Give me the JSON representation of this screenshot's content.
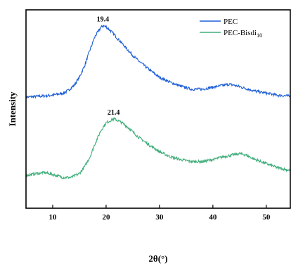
{
  "chart_data": {
    "type": "line",
    "xlabel": "2θ(°)",
    "ylabel": "Intensity",
    "xlim": [
      5,
      54.5
    ],
    "x_ticks": [
      10,
      20,
      30,
      40,
      50
    ],
    "y_ticks_shown": false,
    "grid": false,
    "legend_position": "top-right",
    "series": [
      {
        "name": "PEC",
        "color": "#1f5fd6",
        "x": [
          5,
          8,
          10,
          12,
          13,
          14,
          15,
          16,
          17,
          18,
          19,
          19.4,
          20,
          21,
          22,
          23,
          24,
          25,
          26,
          28,
          30,
          32,
          34,
          36,
          38,
          40,
          42,
          43,
          44,
          46,
          48,
          50,
          52,
          54.5
        ],
        "y": [
          0.56,
          0.565,
          0.57,
          0.58,
          0.595,
          0.62,
          0.66,
          0.72,
          0.8,
          0.87,
          0.91,
          0.92,
          0.915,
          0.89,
          0.86,
          0.83,
          0.8,
          0.77,
          0.745,
          0.7,
          0.66,
          0.635,
          0.615,
          0.6,
          0.6,
          0.61,
          0.62,
          0.625,
          0.62,
          0.605,
          0.59,
          0.58,
          0.57,
          0.565
        ]
      },
      {
        "name": "PEC-Bisdi10",
        "color": "#3fae7a",
        "x": [
          5,
          7,
          8.5,
          10,
          12,
          13.5,
          15,
          16,
          17,
          18,
          19,
          20,
          21,
          21.4,
          22,
          23,
          24,
          25,
          26,
          28,
          30,
          32,
          34,
          36,
          38,
          40,
          42,
          44,
          45,
          46,
          48,
          50,
          52,
          54.5
        ],
        "y": [
          0.165,
          0.175,
          0.18,
          0.17,
          0.155,
          0.155,
          0.175,
          0.21,
          0.26,
          0.33,
          0.39,
          0.43,
          0.445,
          0.45,
          0.445,
          0.43,
          0.41,
          0.385,
          0.36,
          0.32,
          0.285,
          0.26,
          0.245,
          0.235,
          0.235,
          0.245,
          0.26,
          0.27,
          0.275,
          0.27,
          0.245,
          0.225,
          0.205,
          0.19
        ]
      }
    ],
    "annotations": [
      {
        "text": "19.4",
        "x": 19.4,
        "y": 0.92,
        "series": 0
      },
      {
        "text": "21.4",
        "x": 21.4,
        "y": 0.45,
        "series": 1
      }
    ],
    "legend": {
      "entries": [
        {
          "label": "PEC",
          "sub": ""
        },
        {
          "label": "PEC-Bisdi",
          "sub": "10"
        }
      ]
    }
  }
}
